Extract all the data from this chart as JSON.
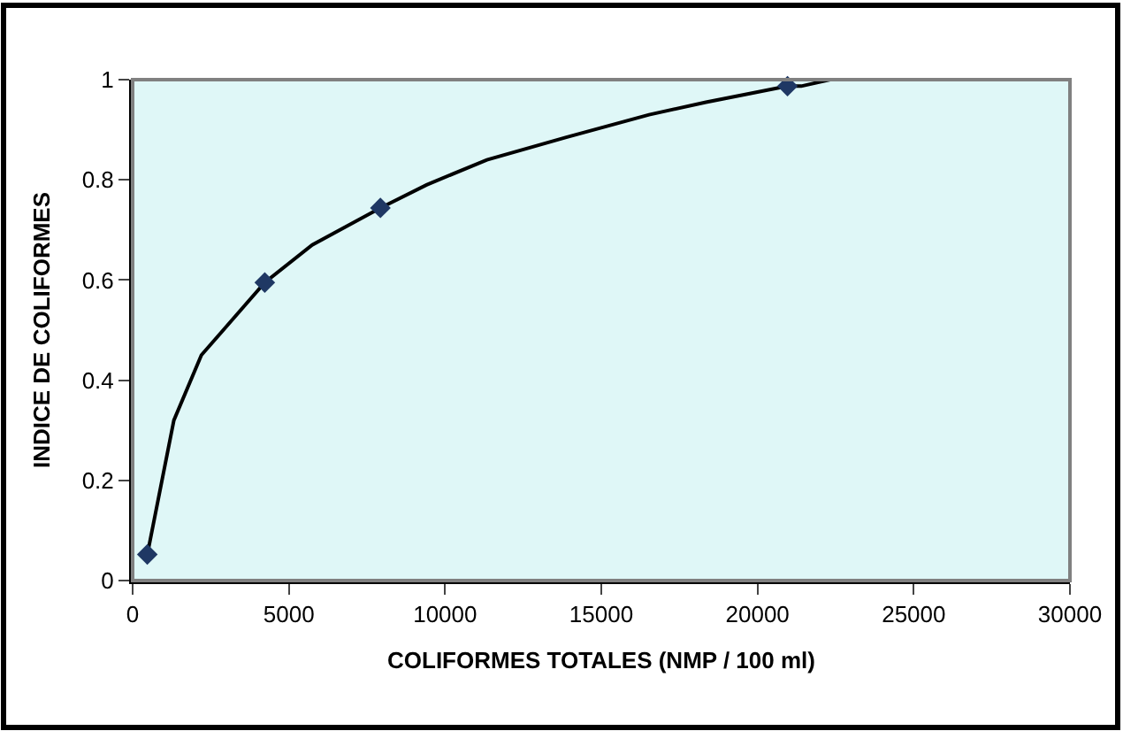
{
  "chart_data": {
    "type": "line",
    "xlabel": "COLIFORMES TOTALES (NMP / 100 ml)",
    "ylabel": "INDICE DE COLIFORMES",
    "xlim": [
      0,
      30000
    ],
    "xticks": [
      0,
      5000,
      10000,
      15000,
      20000,
      25000,
      30000
    ],
    "ylim": [
      0,
      1
    ],
    "yticks": [
      0,
      0.2,
      0.4,
      0.6,
      0.8,
      1
    ],
    "grid": false,
    "series": [
      {
        "color": "#000000",
        "marker": "none",
        "line_style": "solid",
        "x": [
          470,
          1320,
          2200,
          4230,
          5750,
          7930,
          9410,
          11340,
          13880,
          16530,
          18350,
          19570,
          20960,
          21400,
          22320
        ],
        "values": [
          0.052,
          0.32,
          0.45,
          0.595,
          0.67,
          0.744,
          0.79,
          0.84,
          0.885,
          0.93,
          0.955,
          0.97,
          0.987,
          0.987,
          1.0
        ]
      },
      {
        "type": "scatter",
        "color": "#1f3864",
        "marker": "diamond",
        "x": [
          470,
          4230,
          7930,
          20960
        ],
        "values": [
          0.052,
          0.595,
          0.744,
          0.987
        ]
      }
    ]
  }
}
